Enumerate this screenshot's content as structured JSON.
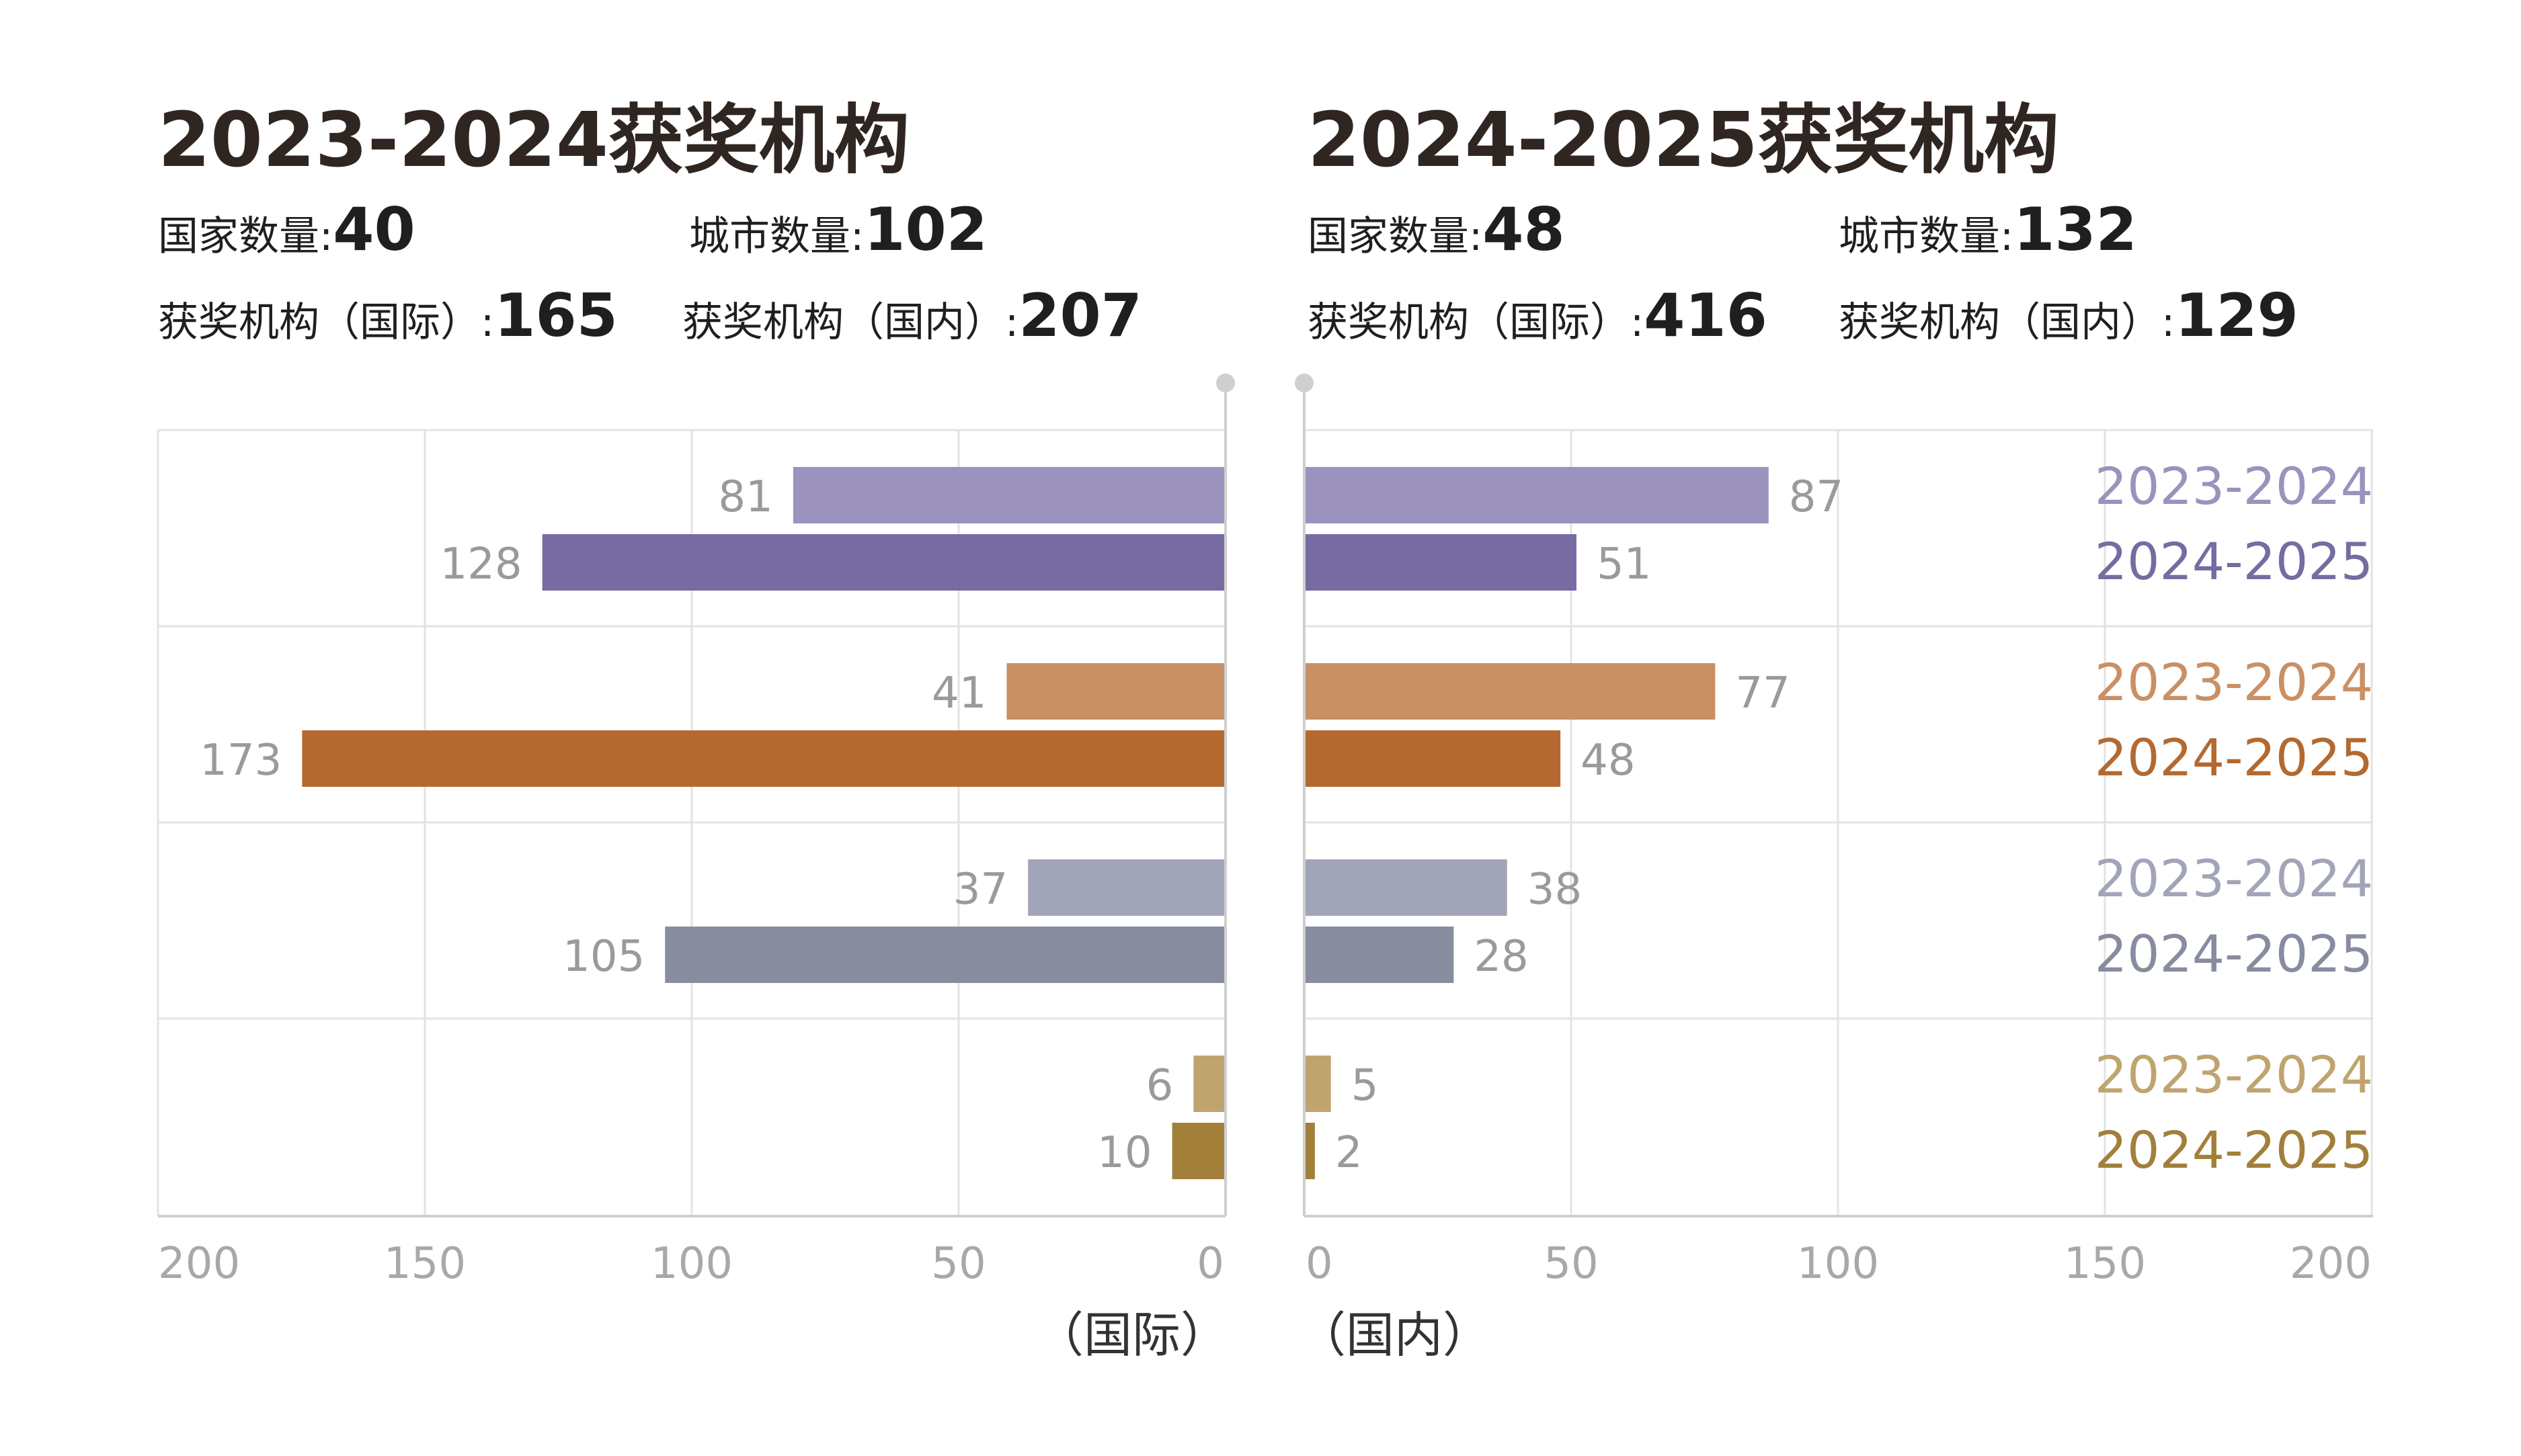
{
  "panels": {
    "left": {
      "title": "2023-2024获奖机构",
      "stats": {
        "countries_label": "国家数量:",
        "countries_value": "40",
        "cities_label": "城市数量:",
        "cities_value": "102",
        "intl_label": "获奖机构（国际）:",
        "intl_value": "165",
        "domestic_label": "获奖机构（国内）:",
        "domestic_value": "207"
      }
    },
    "right": {
      "title": "2024-2025获奖机构",
      "stats": {
        "countries_label": "国家数量:",
        "countries_value": "48",
        "cities_label": "城市数量:",
        "cities_value": "132",
        "intl_label": "获奖机构（国际）:",
        "intl_value": "416",
        "domestic_label": "获奖机构（国内）:",
        "domestic_value": "129"
      }
    }
  },
  "chart_data": {
    "type": "bar",
    "orientation": "horizontal-butterfly",
    "left_axis_label": "（国际）",
    "right_axis_label": "（国内）",
    "ticks": [
      0,
      50,
      100,
      150,
      200
    ],
    "xlim": [
      0,
      200
    ],
    "series_names": [
      "2023-2024",
      "2024-2025"
    ],
    "groups": [
      {
        "international": [
          81,
          128
        ],
        "domestic": [
          87,
          51
        ],
        "colors": [
          "#9b92bd",
          "#776ba1"
        ]
      },
      {
        "international": [
          41,
          173
        ],
        "domestic": [
          77,
          48
        ],
        "colors": [
          "#c99066",
          "#b3692f"
        ]
      },
      {
        "international": [
          37,
          105
        ],
        "domestic": [
          38,
          28
        ],
        "colors": [
          "#a2a5b7",
          "#878c9f"
        ]
      },
      {
        "international": [
          6,
          10
        ],
        "domestic": [
          5,
          2
        ],
        "colors": [
          "#c0a46f",
          "#a2803a"
        ]
      }
    ],
    "value_label_color": "#9a9a9a",
    "grid_color": "#e3e3e3",
    "axis_color": "#cfcfcf"
  }
}
